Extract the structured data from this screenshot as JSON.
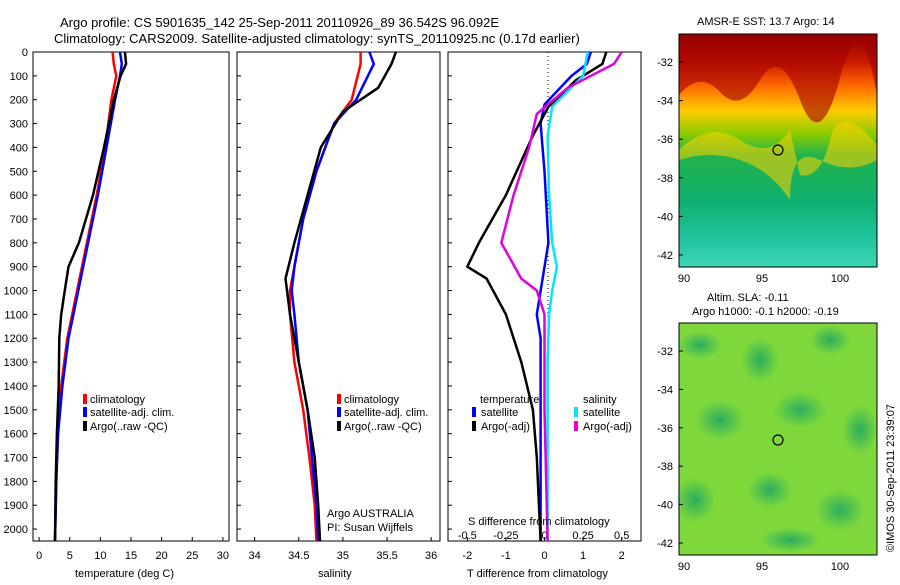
{
  "title": {
    "line1": "Argo profile: CS 5901635_142 25-Sep-2011 20110926_89 36.542S 96.092E",
    "line2": "Climatology: CARS2009. Satellite-adjusted climatology: synTS_20110925.nc (0.17d earlier)"
  },
  "colors": {
    "climatology": "#ff0000",
    "satellite": "#0000ff",
    "argo": "#000000",
    "sat_salinity": "#00e5ff",
    "argo_salinity": "#e000e0"
  },
  "depth_ticks": [
    "0",
    "100",
    "200",
    "300",
    "400",
    "500",
    "600",
    "700",
    "800",
    "900",
    "1000",
    "1100",
    "1200",
    "1300",
    "1400",
    "1500",
    "1600",
    "1700",
    "1800",
    "1900",
    "2000"
  ],
  "panel_temp": {
    "xlabel": "temperature (deg C)",
    "xticks": [
      "0",
      "5",
      "10",
      "15",
      "20",
      "25",
      "30"
    ],
    "legend": [
      "climatology",
      "satellite-adj. clim.",
      "Argo(..raw -QC)"
    ]
  },
  "panel_sal": {
    "xlabel": "salinity",
    "xticks": [
      "34",
      "34.5",
      "35",
      "35.5",
      "36"
    ],
    "legend": [
      "climatology",
      "satellite-adj. clim.",
      "Argo(..raw -QC)"
    ],
    "note1": "Argo AUSTRALIA",
    "note2": "PI: Susan Wijffels"
  },
  "panel_diff": {
    "xlabel": "T difference from climatology",
    "xticks": [
      "-2",
      "-1",
      "0",
      "1",
      "2"
    ],
    "toplabel": "S difference from climatology",
    "sticks": [
      "-0.5",
      "-0.25",
      "0",
      "0.25",
      "0.5"
    ],
    "legend_left_title": "temperature",
    "legend_left": [
      "satellite",
      "Argo(-adj)"
    ],
    "legend_right_title": "salinity",
    "legend_right": [
      "satellite",
      "Argo(-adj)"
    ]
  },
  "map_sst": {
    "title": "AMSR-E SST: 13.7 Argo: 14",
    "yticks": [
      "-32",
      "-34",
      "-36",
      "-38",
      "-40",
      "-42"
    ],
    "xticks": [
      "90",
      "95",
      "100"
    ]
  },
  "map_sla": {
    "title1": "Altim. SLA: -0.11",
    "title2": "Argo h1000: -0.1 h2000: -0.19",
    "yticks": [
      "-32",
      "-34",
      "-36",
      "-38",
      "-40",
      "-42"
    ],
    "xticks": [
      "90",
      "95",
      "100"
    ]
  },
  "credit": "©IMOS 30-Sep-2011 23:39:07",
  "chart_data": [
    {
      "type": "line",
      "xlabel": "temperature (deg C)",
      "ylabel": "",
      "xlim": [
        -1,
        31
      ],
      "ylim": [
        2050,
        0
      ],
      "series": [
        {
          "name": "climatology",
          "points": [
            [
              12,
              0
            ],
            [
              12.2,
              50
            ],
            [
              12.6,
              100
            ],
            [
              11.8,
              200
            ],
            [
              10.8,
              400
            ],
            [
              9.4,
              600
            ],
            [
              7.8,
              800
            ],
            [
              6.2,
              1000
            ],
            [
              4.6,
              1200
            ],
            [
              3.6,
              1400
            ],
            [
              3.0,
              1600
            ],
            [
              2.8,
              1800
            ],
            [
              2.6,
              2050
            ]
          ]
        },
        {
          "name": "satellite-adj. clim.",
          "points": [
            [
              13.2,
              0
            ],
            [
              13.5,
              50
            ],
            [
              13.2,
              100
            ],
            [
              12.4,
              200
            ],
            [
              11.0,
              400
            ],
            [
              9.6,
              600
            ],
            [
              8.0,
              800
            ],
            [
              6.4,
              1000
            ],
            [
              4.8,
              1200
            ],
            [
              3.8,
              1400
            ],
            [
              3.1,
              1600
            ],
            [
              2.8,
              1800
            ],
            [
              2.6,
              2050
            ]
          ]
        },
        {
          "name": "Argo(..raw -QC)",
          "points": [
            [
              14,
              0
            ],
            [
              14.2,
              50
            ],
            [
              13.3,
              100
            ],
            [
              12.2,
              200
            ],
            [
              10.6,
              400
            ],
            [
              8.8,
              600
            ],
            [
              6.5,
              800
            ],
            [
              4.8,
              900
            ],
            [
              4.2,
              1000
            ],
            [
              3.6,
              1100
            ],
            [
              3.3,
              1200
            ],
            [
              3.2,
              1400
            ],
            [
              2.9,
              1600
            ],
            [
              2.7,
              1800
            ],
            [
              2.6,
              2050
            ]
          ]
        }
      ]
    },
    {
      "type": "line",
      "xlabel": "salinity",
      "ylabel": "",
      "xlim": [
        33.8,
        36.1
      ],
      "ylim": [
        2050,
        0
      ],
      "series": [
        {
          "name": "climatology",
          "points": [
            [
              35.2,
              0
            ],
            [
              35.2,
              50
            ],
            [
              35.1,
              200
            ],
            [
              34.9,
              300
            ],
            [
              34.7,
              500
            ],
            [
              34.55,
              700
            ],
            [
              34.45,
              900
            ],
            [
              34.4,
              1000
            ],
            [
              34.4,
              1100
            ],
            [
              34.45,
              1300
            ],
            [
              34.55,
              1500
            ],
            [
              34.62,
              1700
            ],
            [
              34.68,
              1900
            ],
            [
              34.7,
              2050
            ]
          ]
        },
        {
          "name": "satellite-adj. clim.",
          "points": [
            [
              35.3,
              0
            ],
            [
              35.35,
              50
            ],
            [
              35.15,
              200
            ],
            [
              34.9,
              300
            ],
            [
              34.7,
              500
            ],
            [
              34.55,
              700
            ],
            [
              34.45,
              900
            ],
            [
              34.42,
              1000
            ],
            [
              34.45,
              1100
            ],
            [
              34.5,
              1300
            ],
            [
              34.6,
              1500
            ],
            [
              34.65,
              1700
            ],
            [
              34.7,
              1900
            ],
            [
              34.72,
              2050
            ]
          ]
        },
        {
          "name": "Argo(..raw -QC)",
          "points": [
            [
              35.6,
              0
            ],
            [
              35.55,
              50
            ],
            [
              35.4,
              150
            ],
            [
              35.0,
              250
            ],
            [
              34.75,
              400
            ],
            [
              34.6,
              600
            ],
            [
              34.45,
              800
            ],
            [
              34.35,
              950
            ],
            [
              34.4,
              1100
            ],
            [
              34.5,
              1300
            ],
            [
              34.6,
              1500
            ],
            [
              34.68,
              1700
            ],
            [
              34.72,
              1900
            ],
            [
              34.74,
              2050
            ]
          ]
        }
      ]
    },
    {
      "type": "line",
      "xlabel": "T difference from climatology",
      "ylabel": "",
      "xlim": [
        -2.5,
        2.5
      ],
      "ylim": [
        2050,
        0
      ],
      "series": [
        {
          "name": "temperature satellite",
          "points": [
            [
              1.2,
              0
            ],
            [
              1.1,
              50
            ],
            [
              0.7,
              100
            ],
            [
              0.0,
              220
            ],
            [
              -0.1,
              300
            ],
            [
              0.0,
              500
            ],
            [
              0.1,
              800
            ],
            [
              -0.2,
              1100
            ],
            [
              -0.1,
              1200
            ],
            [
              -0.1,
              1500
            ],
            [
              -0.1,
              2050
            ]
          ]
        },
        {
          "name": "temperature Argo(-adj)",
          "points": [
            [
              1.6,
              0
            ],
            [
              1.5,
              50
            ],
            [
              0.8,
              120
            ],
            [
              0.1,
              230
            ],
            [
              -0.3,
              350
            ],
            [
              -1.0,
              600
            ],
            [
              -1.7,
              800
            ],
            [
              -2.0,
              900
            ],
            [
              -1.5,
              950
            ],
            [
              -1.0,
              1100
            ],
            [
              -0.6,
              1300
            ],
            [
              -0.3,
              1500
            ],
            [
              -0.2,
              1700
            ],
            [
              -0.1,
              2050
            ]
          ]
        },
        {
          "name": "salinity satellite",
          "points": [
            [
              0.28,
              0
            ],
            [
              0.25,
              100
            ],
            [
              0.05,
              230
            ],
            [
              0.02,
              350
            ],
            [
              0.03,
              600
            ],
            [
              0.05,
              800
            ],
            [
              0.08,
              900
            ],
            [
              0.05,
              1000
            ],
            [
              0.03,
              1100
            ],
            [
              0.02,
              1300
            ],
            [
              0.02,
              2050
            ]
          ]
        },
        {
          "name": "salinity Argo(-adj)",
          "points": [
            [
              0.5,
              0
            ],
            [
              0.45,
              50
            ],
            [
              0.15,
              150
            ],
            [
              -0.05,
              260
            ],
            [
              -0.1,
              400
            ],
            [
              -0.2,
              600
            ],
            [
              -0.28,
              800
            ],
            [
              -0.15,
              950
            ],
            [
              -0.05,
              1000
            ],
            [
              0.0,
              1100
            ],
            [
              0.0,
              1500
            ],
            [
              0.02,
              2050
            ]
          ]
        }
      ]
    }
  ]
}
